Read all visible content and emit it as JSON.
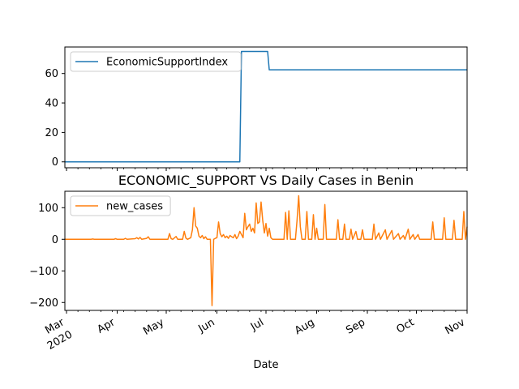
{
  "chart_data": [
    {
      "type": "line",
      "title": "",
      "xlabel": "",
      "ylabel": "",
      "x_range": [
        "2020-02-29",
        "2020-11-01"
      ],
      "ylim": [
        -4,
        78
      ],
      "yticks": [
        0,
        20,
        40,
        60
      ],
      "yticks_labels": [
        "0",
        "20",
        "40",
        "60"
      ],
      "legend": {
        "placement": "top-left"
      },
      "series": [
        {
          "name": "EconomicSupportIndex",
          "color": "#1f77b4",
          "points": [
            [
              "2020-02-29",
              0
            ],
            [
              "2020-06-15",
              0
            ],
            [
              "2020-06-16",
              75
            ],
            [
              "2020-07-02",
              75
            ],
            [
              "2020-07-03",
              62.5
            ],
            [
              "2020-11-01",
              62.5
            ]
          ]
        }
      ]
    },
    {
      "type": "line",
      "title": "ECONOMIC_SUPPORT VS Daily Cases in Benin",
      "xlabel": "Date",
      "ylabel": "",
      "x_range": [
        "2020-02-29",
        "2020-11-01"
      ],
      "ylim": [
        -225,
        152
      ],
      "yticks": [
        -200,
        -100,
        0,
        100
      ],
      "yticks_labels": [
        "−200",
        "−100",
        "0",
        "100"
      ],
      "xticks": [
        {
          "date": "2020-03-01",
          "label": "Mar",
          "sub": "2020"
        },
        {
          "date": "2020-04-01",
          "label": "Apr",
          "sub": ""
        },
        {
          "date": "2020-05-01",
          "label": "May",
          "sub": ""
        },
        {
          "date": "2020-06-01",
          "label": "Jun",
          "sub": ""
        },
        {
          "date": "2020-07-01",
          "label": "Jul",
          "sub": ""
        },
        {
          "date": "2020-08-01",
          "label": "Aug",
          "sub": ""
        },
        {
          "date": "2020-09-01",
          "label": "Sep",
          "sub": ""
        },
        {
          "date": "2020-10-01",
          "label": "Oct",
          "sub": ""
        },
        {
          "date": "2020-11-01",
          "label": "Nov",
          "sub": ""
        }
      ],
      "legend": {
        "placement": "top-left"
      },
      "series": [
        {
          "name": "new_cases",
          "color": "#ff7f0e",
          "points": [
            [
              "2020-02-29",
              0
            ],
            [
              "2020-03-16",
              0
            ],
            [
              "2020-03-17",
              1
            ],
            [
              "2020-03-18",
              0
            ],
            [
              "2020-03-30",
              0
            ],
            [
              "2020-03-31",
              2
            ],
            [
              "2020-04-01",
              0
            ],
            [
              "2020-04-05",
              0
            ],
            [
              "2020-04-06",
              3
            ],
            [
              "2020-04-07",
              0
            ],
            [
              "2020-04-12",
              2
            ],
            [
              "2020-04-13",
              5
            ],
            [
              "2020-04-14",
              1
            ],
            [
              "2020-04-15",
              6
            ],
            [
              "2020-04-16",
              0
            ],
            [
              "2020-04-19",
              3
            ],
            [
              "2020-04-20",
              8
            ],
            [
              "2020-04-21",
              0
            ],
            [
              "2020-05-02",
              0
            ],
            [
              "2020-05-03",
              18
            ],
            [
              "2020-05-04",
              2
            ],
            [
              "2020-05-05",
              0
            ],
            [
              "2020-05-07",
              9
            ],
            [
              "2020-05-08",
              0
            ],
            [
              "2020-05-11",
              0
            ],
            [
              "2020-05-12",
              25
            ],
            [
              "2020-05-13",
              4
            ],
            [
              "2020-05-14",
              0
            ],
            [
              "2020-05-16",
              5
            ],
            [
              "2020-05-17",
              30
            ],
            [
              "2020-05-18",
              100
            ],
            [
              "2020-05-19",
              42
            ],
            [
              "2020-05-20",
              35
            ],
            [
              "2020-05-21",
              10
            ],
            [
              "2020-05-22",
              5
            ],
            [
              "2020-05-23",
              12
            ],
            [
              "2020-05-24",
              2
            ],
            [
              "2020-05-25",
              8
            ],
            [
              "2020-05-26",
              0
            ],
            [
              "2020-05-28",
              0
            ],
            [
              "2020-05-29",
              -210
            ],
            [
              "2020-05-30",
              0
            ],
            [
              "2020-05-31",
              3
            ],
            [
              "2020-06-01",
              5
            ],
            [
              "2020-06-02",
              55
            ],
            [
              "2020-06-03",
              18
            ],
            [
              "2020-06-04",
              8
            ],
            [
              "2020-06-05",
              15
            ],
            [
              "2020-06-06",
              5
            ],
            [
              "2020-06-07",
              10
            ],
            [
              "2020-06-08",
              3
            ],
            [
              "2020-06-09",
              12
            ],
            [
              "2020-06-10",
              8
            ],
            [
              "2020-06-11",
              5
            ],
            [
              "2020-06-12",
              15
            ],
            [
              "2020-06-13",
              2
            ],
            [
              "2020-06-14",
              10
            ],
            [
              "2020-06-15",
              25
            ],
            [
              "2020-06-16",
              15
            ],
            [
              "2020-06-17",
              5
            ],
            [
              "2020-06-18",
              82
            ],
            [
              "2020-06-19",
              30
            ],
            [
              "2020-06-20",
              40
            ],
            [
              "2020-06-21",
              48
            ],
            [
              "2020-06-22",
              25
            ],
            [
              "2020-06-23",
              35
            ],
            [
              "2020-06-24",
              20
            ],
            [
              "2020-06-25",
              115
            ],
            [
              "2020-06-26",
              50
            ],
            [
              "2020-06-27",
              55
            ],
            [
              "2020-06-28",
              118
            ],
            [
              "2020-06-29",
              60
            ],
            [
              "2020-06-30",
              20
            ],
            [
              "2020-07-01",
              50
            ],
            [
              "2020-07-02",
              10
            ],
            [
              "2020-07-03",
              35
            ],
            [
              "2020-07-04",
              5
            ],
            [
              "2020-07-05",
              0
            ],
            [
              "2020-07-12",
              0
            ],
            [
              "2020-07-13",
              85
            ],
            [
              "2020-07-14",
              0
            ],
            [
              "2020-07-15",
              90
            ],
            [
              "2020-07-16",
              0
            ],
            [
              "2020-07-19",
              0
            ],
            [
              "2020-07-20",
              60
            ],
            [
              "2020-07-21",
              138
            ],
            [
              "2020-07-22",
              40
            ],
            [
              "2020-07-23",
              0
            ],
            [
              "2020-07-25",
              0
            ],
            [
              "2020-07-26",
              88
            ],
            [
              "2020-07-27",
              0
            ],
            [
              "2020-07-29",
              0
            ],
            [
              "2020-07-30",
              78
            ],
            [
              "2020-07-31",
              0
            ],
            [
              "2020-08-01",
              35
            ],
            [
              "2020-08-02",
              0
            ],
            [
              "2020-08-05",
              0
            ],
            [
              "2020-08-06",
              110
            ],
            [
              "2020-08-07",
              0
            ],
            [
              "2020-08-13",
              0
            ],
            [
              "2020-08-14",
              62
            ],
            [
              "2020-08-15",
              0
            ],
            [
              "2020-08-17",
              0
            ],
            [
              "2020-08-18",
              48
            ],
            [
              "2020-08-19",
              0
            ],
            [
              "2020-08-21",
              0
            ],
            [
              "2020-08-22",
              32
            ],
            [
              "2020-08-23",
              0
            ],
            [
              "2020-08-25",
              25
            ],
            [
              "2020-08-26",
              0
            ],
            [
              "2020-08-28",
              0
            ],
            [
              "2020-08-29",
              30
            ],
            [
              "2020-08-30",
              0
            ],
            [
              "2020-09-04",
              0
            ],
            [
              "2020-09-05",
              48
            ],
            [
              "2020-09-06",
              0
            ],
            [
              "2020-09-08",
              20
            ],
            [
              "2020-09-09",
              0
            ],
            [
              "2020-09-12",
              30
            ],
            [
              "2020-09-13",
              0
            ],
            [
              "2020-09-16",
              28
            ],
            [
              "2020-09-17",
              0
            ],
            [
              "2020-09-20",
              18
            ],
            [
              "2020-09-21",
              0
            ],
            [
              "2020-09-23",
              12
            ],
            [
              "2020-09-24",
              0
            ],
            [
              "2020-09-26",
              32
            ],
            [
              "2020-09-27",
              0
            ],
            [
              "2020-09-29",
              15
            ],
            [
              "2020-09-30",
              0
            ],
            [
              "2020-10-02",
              15
            ],
            [
              "2020-10-03",
              0
            ],
            [
              "2020-10-10",
              0
            ],
            [
              "2020-10-11",
              55
            ],
            [
              "2020-10-12",
              0
            ],
            [
              "2020-10-17",
              0
            ],
            [
              "2020-10-18",
              68
            ],
            [
              "2020-10-19",
              0
            ],
            [
              "2020-10-23",
              0
            ],
            [
              "2020-10-24",
              60
            ],
            [
              "2020-10-25",
              0
            ],
            [
              "2020-10-29",
              0
            ],
            [
              "2020-10-30",
              88
            ],
            [
              "2020-10-31",
              0
            ],
            [
              "2020-11-01",
              40
            ]
          ]
        }
      ]
    }
  ]
}
